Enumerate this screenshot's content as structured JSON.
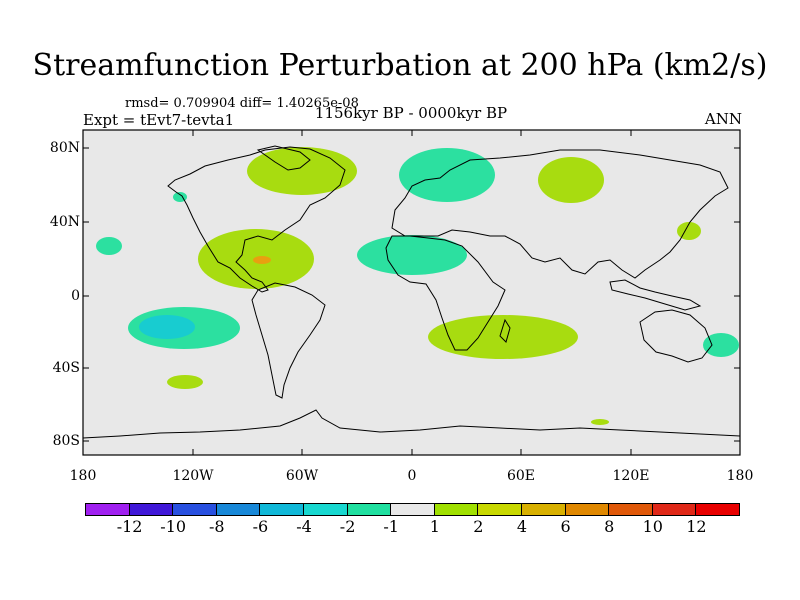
{
  "title": "Streamfunction Perturbation at 200 hPa (km2/s)",
  "stats": "rmsd= 0.709904 diff= 1.40265e-08",
  "experiment": "Expt = tEvt7-tevta1",
  "period": "1156kyr BP - 0000kyr BP",
  "season": "ANN",
  "lat_labels": [
    "80N",
    "40N",
    "0",
    "40S",
    "80S"
  ],
  "lon_labels": [
    "180",
    "120W",
    "60W",
    "0",
    "60E",
    "120E",
    "180"
  ],
  "colorbar": {
    "labels": [
      "-12",
      "-10",
      "-8",
      "-6",
      "-4",
      "-2",
      "-1",
      "1",
      "2",
      "4",
      "6",
      "8",
      "10",
      "12"
    ],
    "colors": [
      "#a020f0",
      "#4018d8",
      "#2850e0",
      "#1888d8",
      "#10b8d8",
      "#18d8d0",
      "#20e0a0",
      "#e8e8e8",
      "#a0e000",
      "#c8d800",
      "#d8b000",
      "#e08800",
      "#e05808",
      "#e02818",
      "#e80000"
    ]
  },
  "map_colors": {
    "ocean": "#e8e8e8",
    "pos1": "#a8dc10",
    "neg1": "#2ce0a0",
    "neg4": "#18ccd0",
    "pos4": "#e8a010"
  }
}
